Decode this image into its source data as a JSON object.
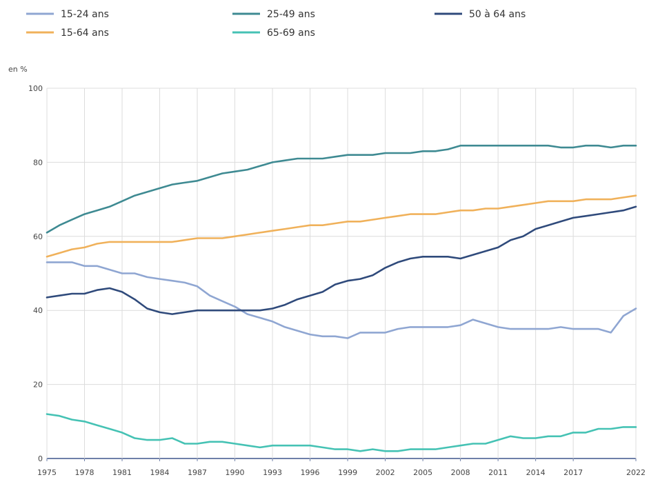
{
  "chart_data": {
    "type": "line",
    "title": "",
    "xlabel": "",
    "ylabel": "en %",
    "xlim": [
      1975,
      2022
    ],
    "ylim": [
      0,
      100
    ],
    "grid": true,
    "legend_position": "top",
    "x_ticks": [
      1975,
      1978,
      1981,
      1984,
      1987,
      1990,
      1993,
      1996,
      1999,
      2002,
      2005,
      2008,
      2011,
      2014,
      2017,
      2022
    ],
    "y_ticks": [
      0,
      20,
      40,
      60,
      80,
      100
    ],
    "x": [
      1975,
      1976,
      1977,
      1978,
      1979,
      1980,
      1981,
      1982,
      1983,
      1984,
      1985,
      1986,
      1987,
      1988,
      1989,
      1990,
      1991,
      1992,
      1993,
      1994,
      1995,
      1996,
      1997,
      1998,
      1999,
      2000,
      2001,
      2002,
      2003,
      2004,
      2005,
      2006,
      2007,
      2008,
      2009,
      2010,
      2011,
      2012,
      2013,
      2014,
      2015,
      2016,
      2017,
      2018,
      2019,
      2020,
      2021,
      2022
    ],
    "series": [
      {
        "name": "15-24 ans",
        "color": "#8fa6d2",
        "values": [
          53,
          53,
          53,
          52,
          52,
          51,
          50,
          50,
          49,
          48.5,
          48,
          47.5,
          46.5,
          44,
          42.5,
          41,
          39,
          38,
          37,
          35.5,
          34.5,
          33.5,
          33,
          33,
          32.5,
          34,
          34,
          34,
          35,
          35.5,
          35.5,
          35.5,
          35.5,
          36,
          37.5,
          36.5,
          35.5,
          35,
          35,
          35,
          35,
          35.5,
          35,
          35,
          35,
          34,
          38.5,
          40.5
        ]
      },
      {
        "name": "25-49 ans",
        "color": "#3e8a92",
        "values": [
          61,
          63,
          64.5,
          66,
          67,
          68,
          69.5,
          71,
          72,
          73,
          74,
          74.5,
          75,
          76,
          77,
          77.5,
          78,
          79,
          80,
          80.5,
          81,
          81,
          81,
          81.5,
          82,
          82,
          82,
          82.5,
          82.5,
          82.5,
          83,
          83,
          83.5,
          84.5,
          84.5,
          84.5,
          84.5,
          84.5,
          84.5,
          84.5,
          84.5,
          84,
          84,
          84.5,
          84.5,
          84,
          84.5,
          84.5
        ]
      },
      {
        "name": "50 à 64 ans",
        "color": "#2f4a7b",
        "values": [
          43.5,
          44,
          44.5,
          44.5,
          45.5,
          46,
          45,
          43,
          40.5,
          39.5,
          39,
          39.5,
          40,
          40,
          40,
          40,
          40,
          40,
          40.5,
          41.5,
          43,
          44,
          45,
          47,
          48,
          48.5,
          49.5,
          51.5,
          53,
          54,
          54.5,
          54.5,
          54.5,
          54,
          55,
          56,
          57,
          59,
          60,
          62,
          63,
          64,
          65,
          65.5,
          66,
          66.5,
          67,
          68
        ]
      },
      {
        "name": "15-64 ans",
        "color": "#f0b15a",
        "values": [
          54.5,
          55.5,
          56.5,
          57,
          58,
          58.5,
          58.5,
          58.5,
          58.5,
          58.5,
          58.5,
          59,
          59.5,
          59.5,
          59.5,
          60,
          60.5,
          61,
          61.5,
          62,
          62.5,
          63,
          63,
          63.5,
          64,
          64,
          64.5,
          65,
          65.5,
          66,
          66,
          66,
          66.5,
          67,
          67,
          67.5,
          67.5,
          68,
          68.5,
          69,
          69.5,
          69.5,
          69.5,
          70,
          70,
          70,
          70.5,
          71
        ]
      },
      {
        "name": "65-69 ans",
        "color": "#45c2b4",
        "values": [
          12,
          11.5,
          10.5,
          10,
          9,
          8,
          7,
          5.5,
          5,
          5,
          5.5,
          4,
          4,
          4.5,
          4.5,
          4,
          3.5,
          3,
          3.5,
          3.5,
          3.5,
          3.5,
          3,
          2.5,
          2.5,
          2,
          2.5,
          2,
          2,
          2.5,
          2.5,
          2.5,
          3,
          3.5,
          4,
          4,
          5,
          6,
          5.5,
          5.5,
          6,
          6,
          7,
          7,
          8,
          8,
          8.5,
          8.5
        ]
      }
    ]
  }
}
